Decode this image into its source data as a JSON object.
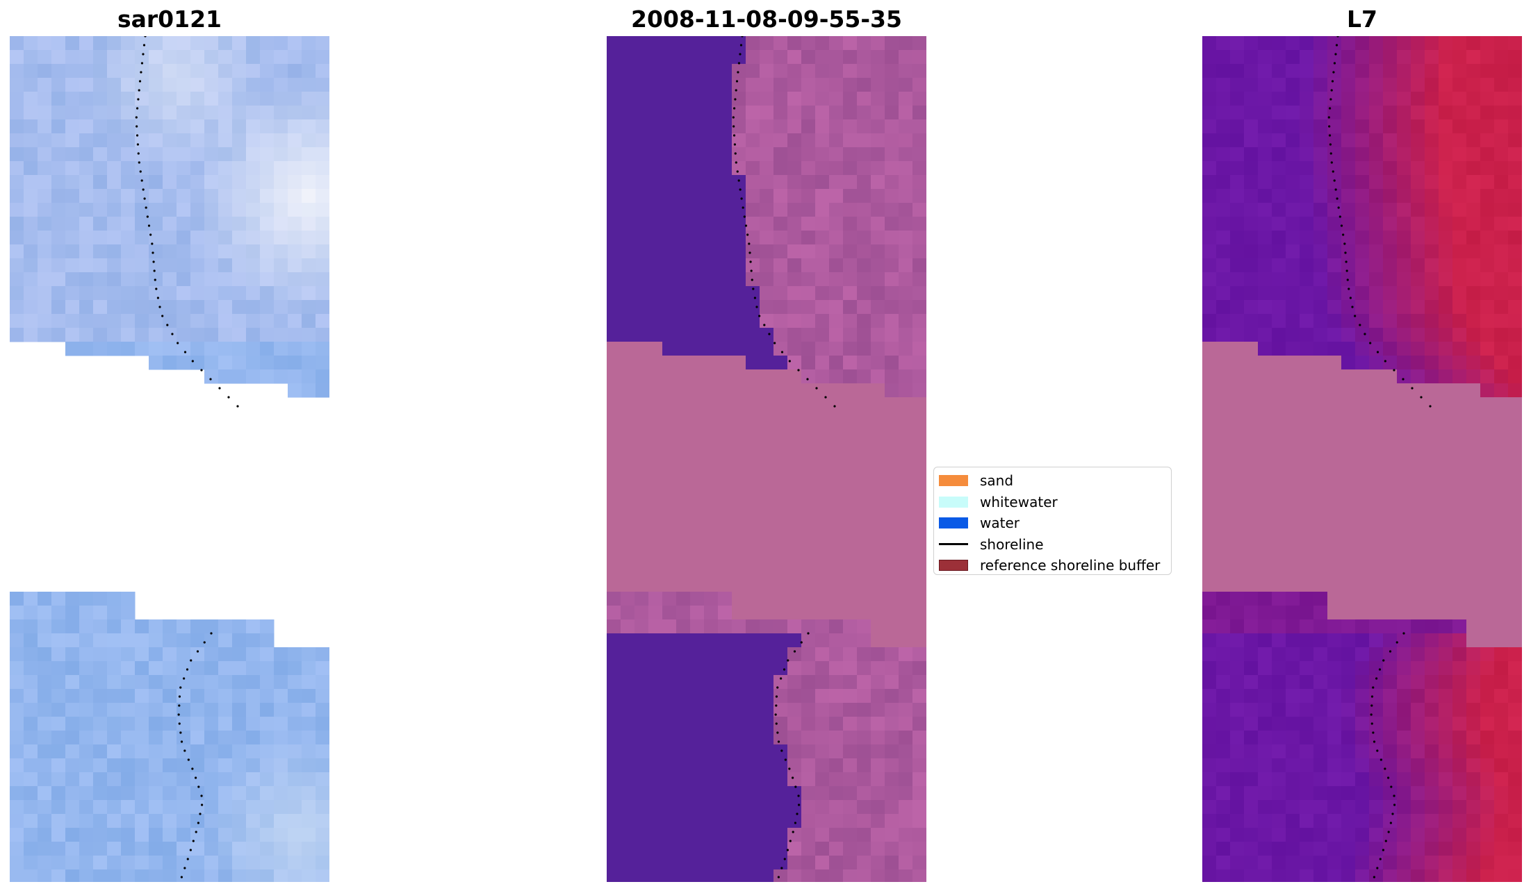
{
  "panels": [
    {
      "title": "sar0121",
      "kind": "rgb"
    },
    {
      "title": "2008-11-08-09-55-35",
      "kind": "classified"
    },
    {
      "title": "L7",
      "kind": "index"
    }
  ],
  "legend": {
    "items": [
      {
        "label": "sand",
        "color": "#f58c3c",
        "kind": "patch"
      },
      {
        "label": "whitewater",
        "color": "#c8fcfa",
        "kind": "patch"
      },
      {
        "label": "water",
        "color": "#0a5ae6",
        "kind": "patch"
      },
      {
        "label": "shoreline",
        "color": "#000000",
        "kind": "line"
      },
      {
        "label": "reference shoreline buffer",
        "color": "#9c3038",
        "kind": "patch"
      }
    ]
  },
  "colors": {
    "nodata_magenta": "#ba6897",
    "classified_water": "#55219a",
    "classified_land": "#a65a98",
    "rgb_base": "#9cb4e8",
    "index_water": "#6a1aa0",
    "index_land": "#c41e4c"
  }
}
